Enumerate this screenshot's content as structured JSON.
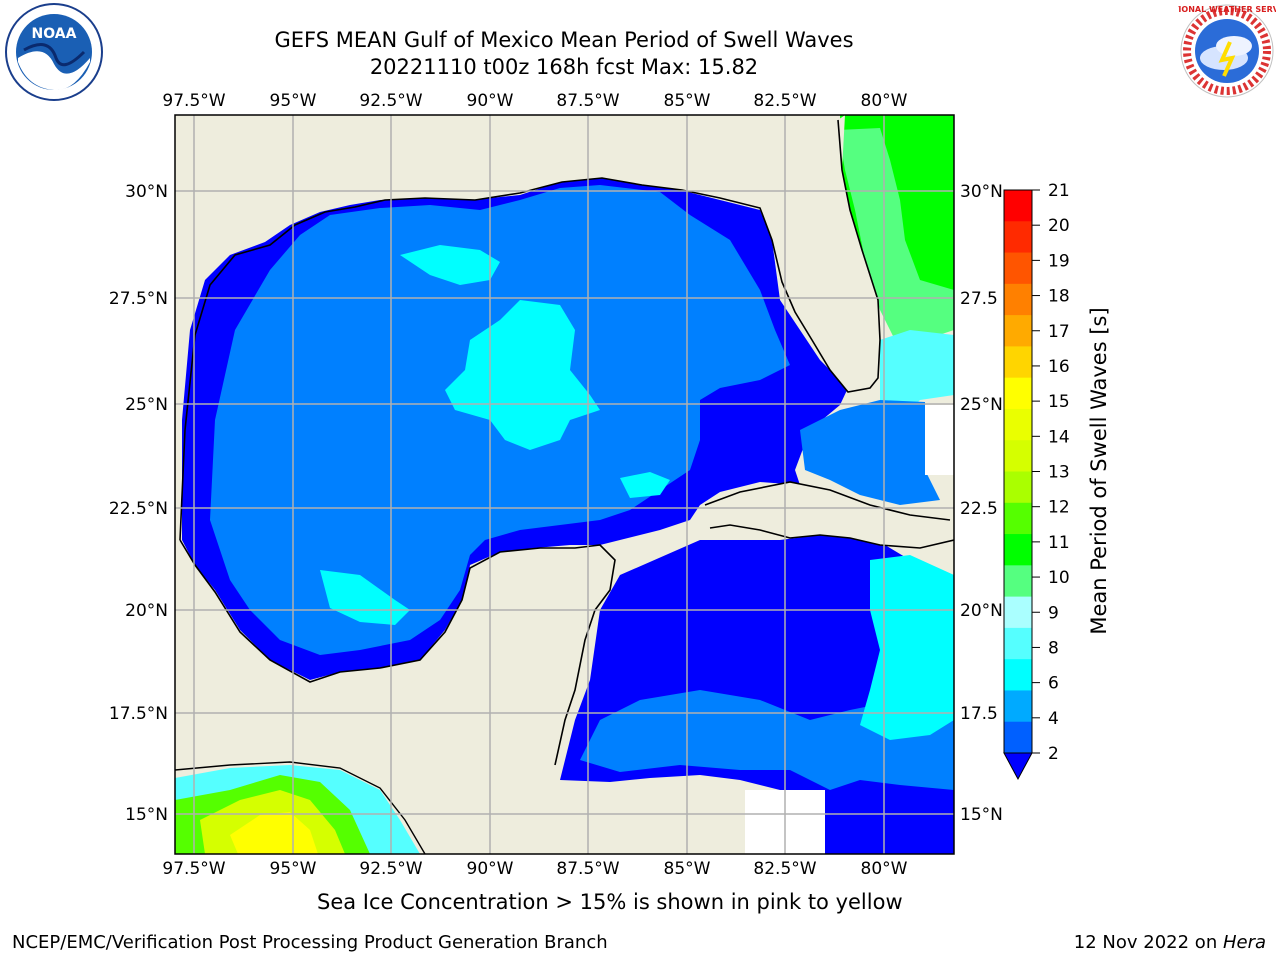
{
  "header": {
    "title_line1": "GEFS MEAN Gulf of Mexico Mean Period of Swell Waves",
    "title_line2": "20221110 t00z 168h fcst   Max: 15.82"
  },
  "logos": {
    "left": "NOAA",
    "right": "NATIONAL WEATHER SERVICE"
  },
  "map": {
    "lon_labels": [
      "97.5°W",
      "95°W",
      "92.5°W",
      "90°W",
      "87.5°W",
      "85°W",
      "82.5°W",
      "80°W"
    ],
    "lat_labels_left": [
      "30°N",
      "27.5°N",
      "25°N",
      "22.5°N",
      "20°N",
      "17.5°N",
      "15°N"
    ],
    "lat_labels_right": [
      "30°N",
      "27.5",
      "25°N",
      "22.5",
      "20°N",
      "17.5",
      "15°N"
    ],
    "colors": {
      "land": "#eeeddd",
      "grid": "#b0b0b0",
      "coast": "#000000"
    }
  },
  "colorbar": {
    "label": "Mean Period of Swell Waves [s]",
    "ticks": [
      "21",
      "20",
      "19",
      "18",
      "17",
      "16",
      "15",
      "14",
      "13",
      "12",
      "11",
      "10",
      "9",
      "8",
      "6",
      "4",
      "2"
    ],
    "colors_top_to_bottom": [
      "#ff0000",
      "#ff2a00",
      "#ff5500",
      "#ff8000",
      "#ffaa00",
      "#ffd500",
      "#ffff00",
      "#eaff00",
      "#d5ff00",
      "#aaff00",
      "#55ff00",
      "#00ff00",
      "#55ff80",
      "#aaffff",
      "#55ffff",
      "#00ffff",
      "#00aaff",
      "#0060ff"
    ],
    "extend_color": "#0000ff"
  },
  "note": "Sea Ice Concentration > 15% is shown in pink to yellow",
  "footer": {
    "left": "NCEP/EMC/Verification Post Processing Product Generation Branch",
    "right_prefix": "12 Nov 2022 on ",
    "right_host": "Hera"
  }
}
